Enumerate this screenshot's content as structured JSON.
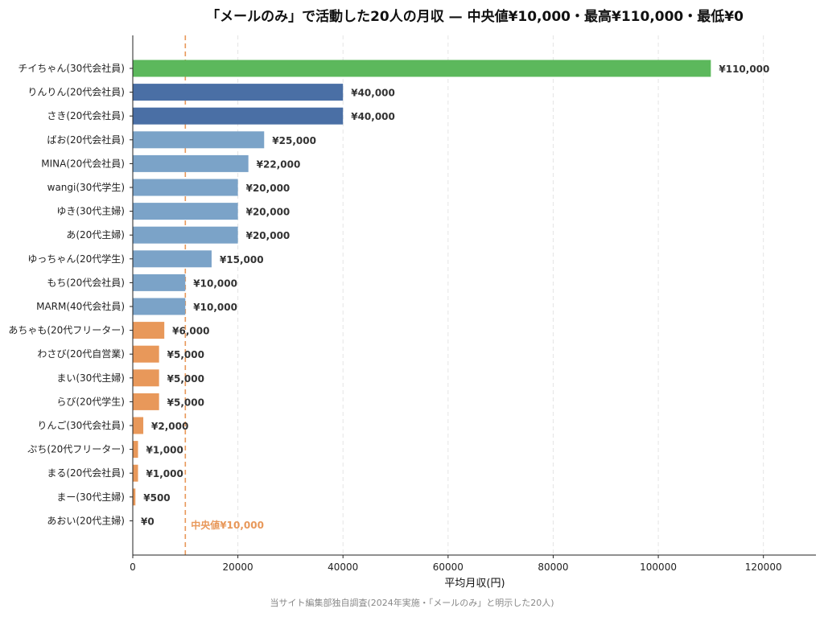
{
  "chart_data": {
    "type": "bar",
    "orientation": "horizontal",
    "title": "「メールのみ」で活動した20人の月収 — 中央値¥10,000・最高¥110,000・最低¥0",
    "xlabel": "平均月収(円)",
    "ylabel": "",
    "xlim": [
      0,
      130000
    ],
    "xticks": [
      0,
      20000,
      40000,
      60000,
      80000,
      100000,
      120000
    ],
    "xtick_labels": [
      "0",
      "20000",
      "40000",
      "60000",
      "80000",
      "100000",
      "120000"
    ],
    "grid": "vertical-dashed",
    "categories": [
      "チイちゃん(30代会社員)",
      "りんりん(20代会社員)",
      "さき(20代会社員)",
      "ばお(20代会社員)",
      "MINA(20代会社員)",
      "wangi(30代学生)",
      "ゆき(30代主婦)",
      "あ(20代主婦)",
      "ゆっちゃん(20代学生)",
      "もち(20代会社員)",
      "MARM(40代会社員)",
      "あちゃも(20代フリーター)",
      "わさび(20代自営業)",
      "まい(30代主婦)",
      "らび(20代学生)",
      "りんご(30代会社員)",
      "ぷち(20代フリーター)",
      "まる(20代会社員)",
      "まー(30代主婦)",
      "あおい(20代主婦)"
    ],
    "values": [
      110000,
      40000,
      40000,
      25000,
      22000,
      20000,
      20000,
      20000,
      15000,
      10000,
      10000,
      6000,
      5000,
      5000,
      5000,
      2000,
      1000,
      1000,
      500,
      0
    ],
    "value_labels": [
      "¥110,000",
      "¥40,000",
      "¥40,000",
      "¥25,000",
      "¥22,000",
      "¥20,000",
      "¥20,000",
      "¥20,000",
      "¥15,000",
      "¥10,000",
      "¥10,000",
      "¥6,000",
      "¥5,000",
      "¥5,000",
      "¥5,000",
      "¥2,000",
      "¥1,000",
      "¥1,000",
      "¥500",
      "¥0"
    ],
    "bar_colors": [
      "#5CB85C",
      "#4A6FA5",
      "#4A6FA5",
      "#7BA3C8",
      "#7BA3C8",
      "#7BA3C8",
      "#7BA3C8",
      "#7BA3C8",
      "#7BA3C8",
      "#7BA3C8",
      "#7BA3C8",
      "#E8985A",
      "#E8985A",
      "#E8985A",
      "#E8985A",
      "#E8985A",
      "#E8985A",
      "#E8985A",
      "#E8985A",
      "#E8985A"
    ],
    "median": {
      "value": 10000,
      "label": "中央値¥10,000",
      "color": "#E8985A"
    },
    "source_note": "当サイト編集部独自調査(2024年実施・「メールのみ」と明示した20人)"
  }
}
